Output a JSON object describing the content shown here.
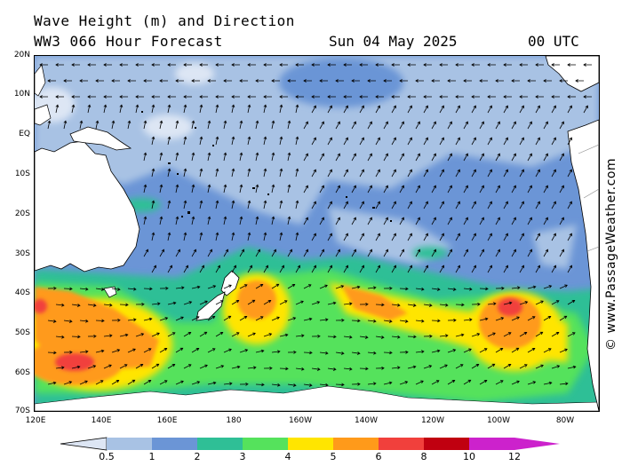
{
  "header": {
    "line1": "Wave Height (m) and Direction",
    "line2": "WW3 066 Hour Forecast",
    "date": "Sun 04 May 2025",
    "time": "00 UTC"
  },
  "watermark": "© www.PassageWeather.com",
  "axes": {
    "lat_labels": [
      "20N",
      "10N",
      "EQ",
      "10S",
      "20S",
      "30S",
      "40S",
      "50S",
      "60S",
      "70S"
    ],
    "lon_labels": [
      "120E",
      "140E",
      "160E",
      "180",
      "160W",
      "140W",
      "120W",
      "100W",
      "80W"
    ]
  },
  "legend": {
    "levels": [
      "0.5",
      "1",
      "2",
      "3",
      "4",
      "5",
      "6",
      "8",
      "10",
      "12"
    ],
    "colors": [
      "#dde6f4",
      "#a8c2e4",
      "#6b95d6",
      "#2fbf96",
      "#55e25c",
      "#ffe500",
      "#ff9a1a",
      "#f1403c",
      "#c00010",
      "#cc22cc"
    ]
  },
  "colors": {
    "land": "#ffffff",
    "coast": "#000000",
    "border": "#8a8a8a"
  }
}
